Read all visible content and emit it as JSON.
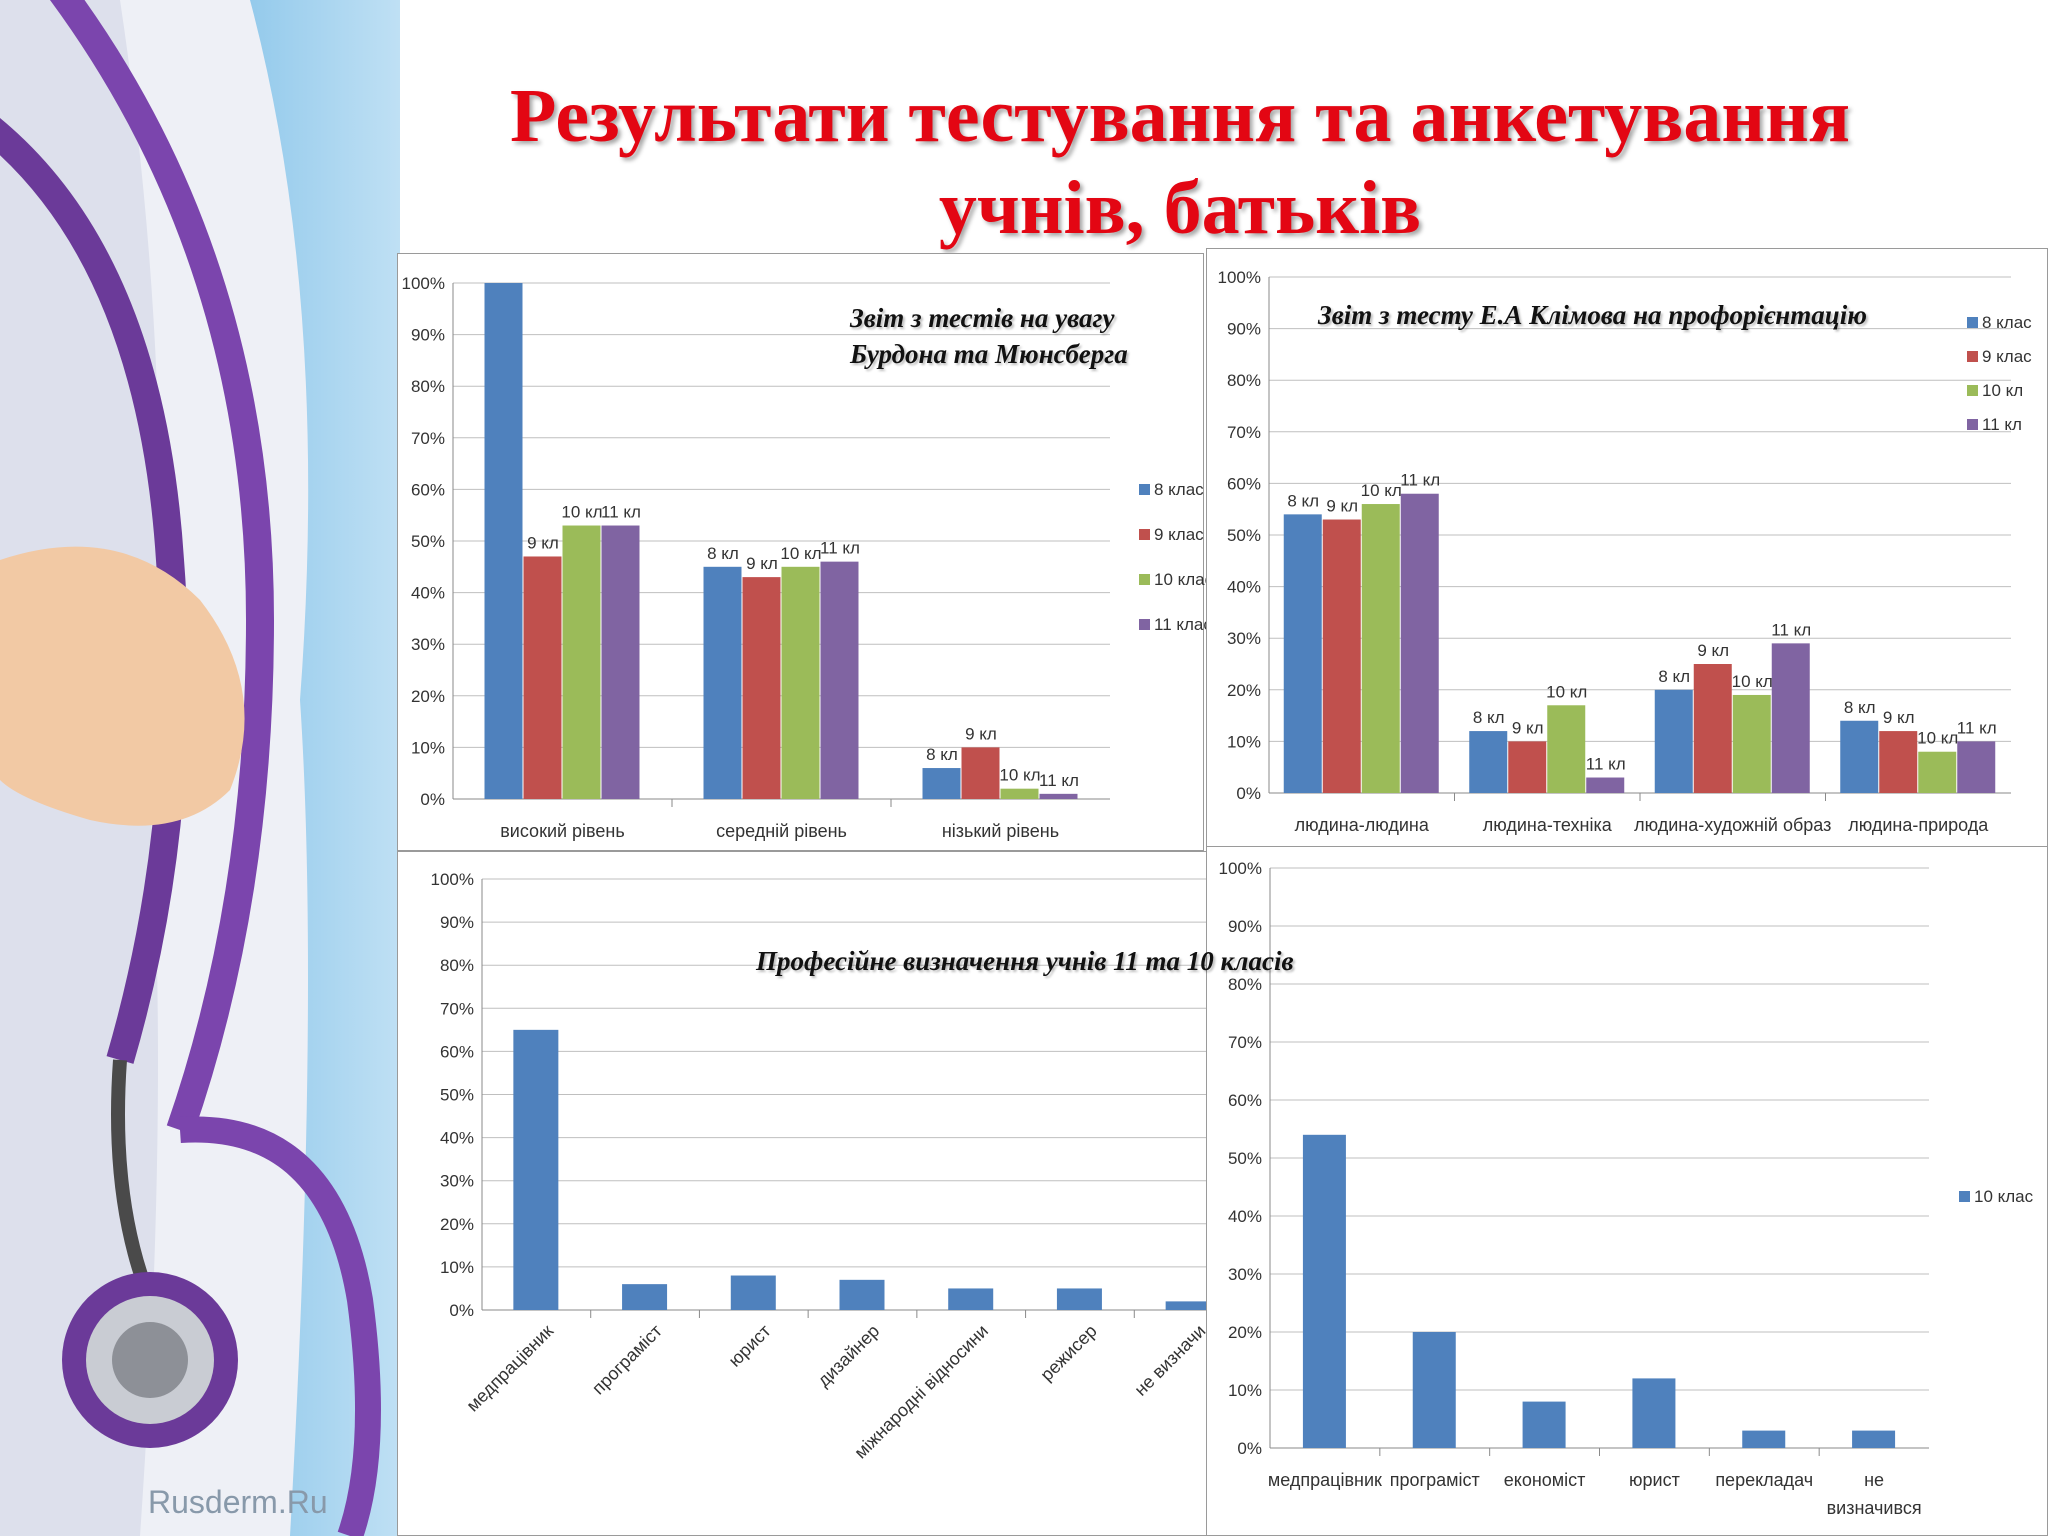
{
  "slide": {
    "title_line1": "Результати тестування та анкетування",
    "title_line2": "учнів, батьків",
    "watermark": "Rusderm.Ru"
  },
  "captions": {
    "chart1": "Звіт з тестів на увагу\n Бурдона та Мюнсберга",
    "chart2": "Звіт з тесту Е.А Клімова на профорієнтацію",
    "chart34": "Професійне визначення учнів  11 та 10 класів"
  },
  "colors": {
    "series": [
      "#4f81bd",
      "#c0504d",
      "#9bbb59",
      "#8064a2"
    ],
    "title": "#e30613"
  },
  "chart_data": [
    {
      "type": "bar",
      "categories": [
        "високий рівень",
        "середній рівень",
        "нізький рівень"
      ],
      "ylim": [
        0,
        100
      ],
      "yticks": [
        "0%",
        "10%",
        "20%",
        "30%",
        "40%",
        "50%",
        "60%",
        "70%",
        "80%",
        "90%",
        "100%"
      ],
      "legend_position": "right",
      "grid": true,
      "series": [
        {
          "name": "8 клас",
          "values": [
            100,
            45,
            6
          ],
          "labels": [
            "",
            "8 кл",
            "8 кл"
          ]
        },
        {
          "name": "9 клас",
          "values": [
            47,
            43,
            10
          ],
          "labels": [
            "9 кл",
            "9 кл",
            "9 кл"
          ]
        },
        {
          "name": "10 клас",
          "values": [
            53,
            45,
            2
          ],
          "labels": [
            "10 кл",
            "10 кл",
            "10 кл"
          ]
        },
        {
          "name": "11 клас",
          "values": [
            53,
            46,
            1
          ],
          "labels": [
            "11 кл",
            "11 кл",
            "11 кл"
          ]
        }
      ]
    },
    {
      "type": "bar",
      "categories": [
        "людина-людина",
        "людина-техніка",
        "людина-художній образ",
        "людина-природа"
      ],
      "ylim": [
        0,
        100
      ],
      "yticks": [
        "0%",
        "10%",
        "20%",
        "30%",
        "40%",
        "50%",
        "60%",
        "70%",
        "80%",
        "90%",
        "100%"
      ],
      "legend_position": "top-right",
      "grid": true,
      "series": [
        {
          "name": "8 клас",
          "values": [
            54,
            12,
            20,
            14
          ],
          "labels": [
            "8 кл",
            "8 кл",
            "8 кл",
            "8 кл"
          ]
        },
        {
          "name": "9 клас",
          "values": [
            53,
            10,
            25,
            12
          ],
          "labels": [
            "9 кл",
            "9 кл",
            "9 кл",
            "9 кл"
          ]
        },
        {
          "name": "10 кл",
          "values": [
            56,
            17,
            19,
            8
          ],
          "labels": [
            "10 кл",
            "10 кл",
            "10 кл",
            "10 кл"
          ]
        },
        {
          "name": "11 кл",
          "values": [
            58,
            3,
            29,
            10
          ],
          "labels": [
            "11 кл",
            "11 кл",
            "11 кл",
            "11 кл"
          ]
        }
      ]
    },
    {
      "type": "bar",
      "categories": [
        "медпрацівник",
        "програміст",
        "юрист",
        "дизайнер",
        "міжнародні відносини",
        "режисер",
        "не визначи"
      ],
      "ylim": [
        0,
        100
      ],
      "yticks": [
        "0%",
        "10%",
        "20%",
        "30%",
        "40%",
        "50%",
        "60%",
        "70%",
        "80%",
        "90%",
        "100%"
      ],
      "grid": true,
      "series": [
        {
          "values": [
            65,
            6,
            8,
            7,
            5,
            5,
            2
          ]
        }
      ]
    },
    {
      "type": "bar",
      "categories": [
        "медпрацівник",
        "програміст",
        "економіст",
        "юрист",
        "перекладач",
        "не визначився"
      ],
      "ylim": [
        0,
        100
      ],
      "yticks": [
        "0%",
        "10%",
        "20%",
        "30%",
        "40%",
        "50%",
        "60%",
        "70%",
        "80%",
        "90%",
        "100%"
      ],
      "legend_position": "right",
      "grid": true,
      "series": [
        {
          "name": "10 клас",
          "values": [
            54,
            20,
            8,
            12,
            3,
            3
          ]
        }
      ]
    }
  ]
}
